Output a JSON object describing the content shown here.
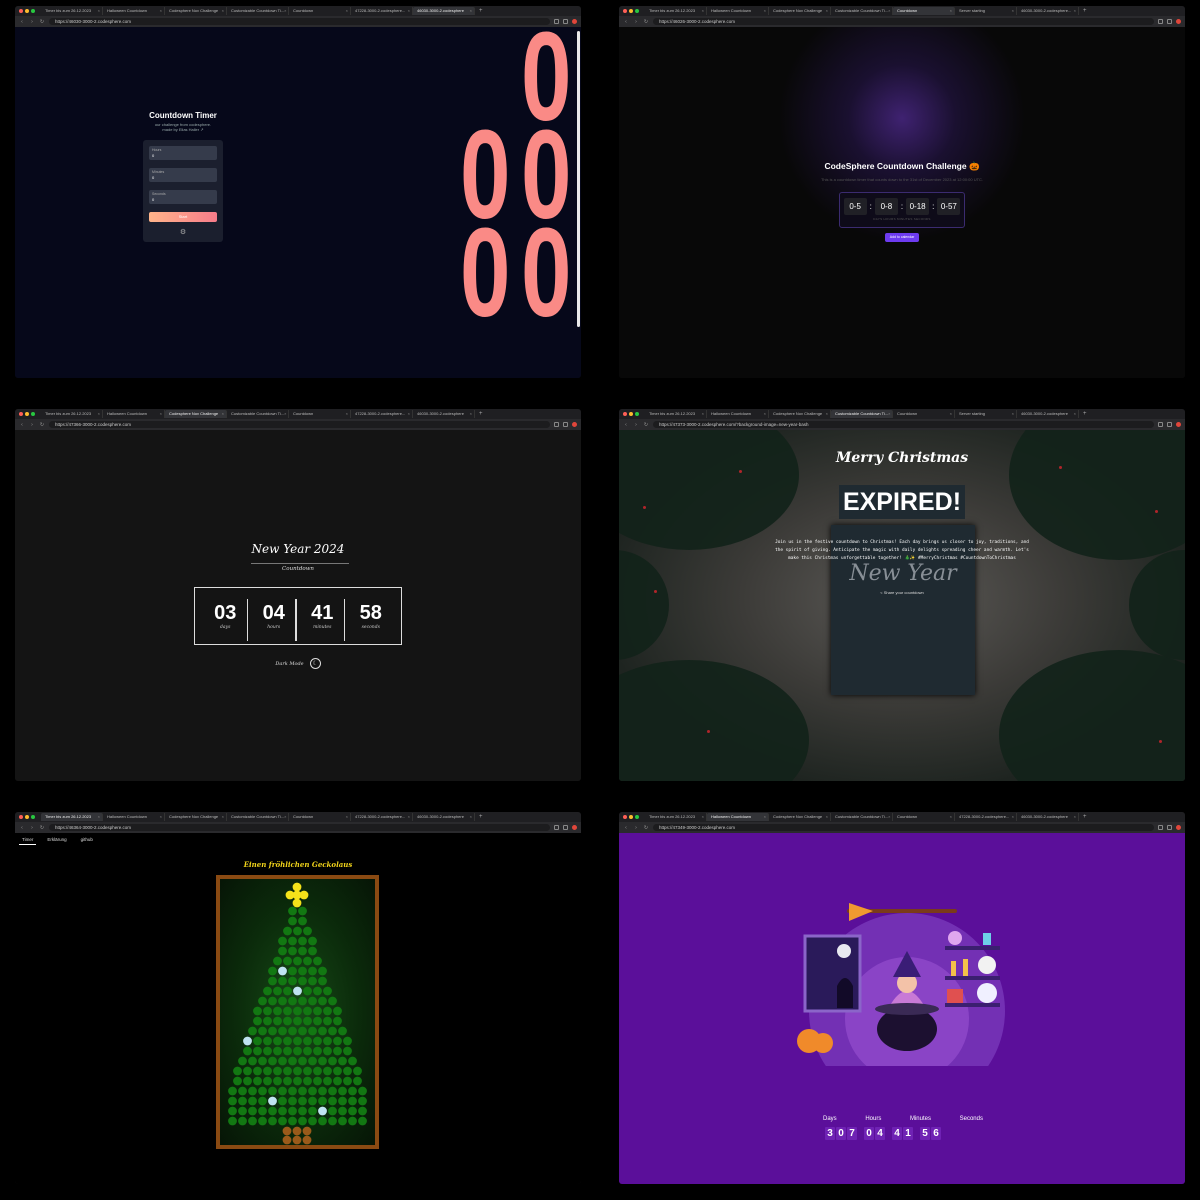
{
  "browser": {
    "panel1": {
      "tabs": [
        "Timer bis zum 26.12.2023",
        "Halloween Countdown",
        "Codesphere Nov Challenge",
        "Customizable Countdown Ti...",
        "Countdown",
        "47228-3000-2.codesphere...",
        "46030-3000-2.codesphere"
      ],
      "url": "https://46030-3000-2.codesphere.com"
    },
    "panel2": {
      "tabs": [
        "Timer bis zum 26.12.2023",
        "Halloween Countdown",
        "Codesphere Nov Challenge",
        "Customizable Countdown Ti...",
        "Countdown",
        "Server starting",
        "46030-3000-2.codesphere..."
      ],
      "url": "https://46026-3000-2.codesphere.com"
    },
    "panel3": {
      "tabs": [
        "Timer bis zum 26.12.2023",
        "Halloween Countdown",
        "Codesphere Nov Challenge",
        "Customizable Countdown Ti...",
        "Countdown",
        "47228-3000-2.codesphere...",
        "46030-3000-2.codesphere"
      ],
      "url": "https://47366-3000-2.codesphere.com"
    },
    "panel4": {
      "tabs": [
        "Timer bis zum 26.12.2023",
        "Halloween Countdown",
        "Codesphere Nov Challenge",
        "Customizable Countdown Ti...",
        "Countdown",
        "Server starting",
        "46030-3000-2.codesphere"
      ],
      "url": "https://47373-3000-2.codesphere.com/?background-image=new-year-bash"
    },
    "panel5": {
      "tabs": [
        "Timer bis zum 26.12.2023",
        "Halloween Countdown",
        "Codesphere Nov Challenge",
        "Customizable Countdown Ti...",
        "Countdown",
        "47228-3000-2.codesphere...",
        "46030-3000-2.codesphere"
      ],
      "url": "https://46364-3000-2.codesphere.com"
    },
    "panel6": {
      "tabs": [
        "Timer bis zum 26.12.2023",
        "Halloween Countdown",
        "Codesphere Nov Challenge",
        "Customizable Countdown Ti...",
        "Countdown",
        "47228-3000-2.codesphere...",
        "46030-3000-2.codesphere"
      ],
      "url": "https://47349-3000-2.codesphere.com"
    }
  },
  "p1": {
    "title": "Countdown Timer",
    "subtitle_line1": "our challenge from codesphere.",
    "subtitle_line2": "made by Elias Haller ↗",
    "fields": [
      {
        "label": "Hours",
        "value": "0"
      },
      {
        "label": "Minutes",
        "value": "0"
      },
      {
        "label": "Seconds",
        "value": "0"
      }
    ],
    "start_label": "Start",
    "digits": [
      "0",
      "0",
      "0",
      "0",
      "0"
    ]
  },
  "p2": {
    "title": "CodeSphere Countdown Challenge 🎃",
    "description": "This is a countdown timer that counts down to the 31st of December 2023 at 12:00:00 UTC.",
    "cells": [
      "0-5",
      "0-8",
      "0-18",
      "0-57"
    ],
    "labels": "DAYS   HOURS   MINUTES   SECONDS",
    "button": "Add to calendar"
  },
  "p3": {
    "title": "New Year 2024",
    "subtitle": "Countdown",
    "units": [
      {
        "value": "03",
        "label": "days"
      },
      {
        "value": "04",
        "label": "hours"
      },
      {
        "value": "41",
        "label": "minutes"
      },
      {
        "value": "58",
        "label": "seconds"
      }
    ],
    "dark_mode": "Dark Mode"
  },
  "p4": {
    "title": "Merry Christmas",
    "expired": "EXPIRED!",
    "text": "Join us in the festive countdown to Christmas! Each day brings us closer to joy, traditions, and the spirit of giving. Anticipate the magic with daily delights spreading cheer and warmth. Let's make this Christmas unforgettable together! 🎄✨ #MerryChristmas #CountdownToChristmas",
    "share": "< Share your countdown",
    "card_text": "New Year"
  },
  "p5": {
    "tabs": [
      "Timer",
      "Erklärung",
      "github"
    ],
    "title": "Einen fröhlichen Geckolaus"
  },
  "p6": {
    "labels": [
      "Days",
      "Hours",
      "Minutes",
      "Seconds"
    ],
    "digits": [
      [
        "3",
        "0",
        "7"
      ],
      [
        "0",
        "4"
      ],
      [
        "4",
        "1"
      ],
      [
        "5",
        "6"
      ]
    ]
  }
}
